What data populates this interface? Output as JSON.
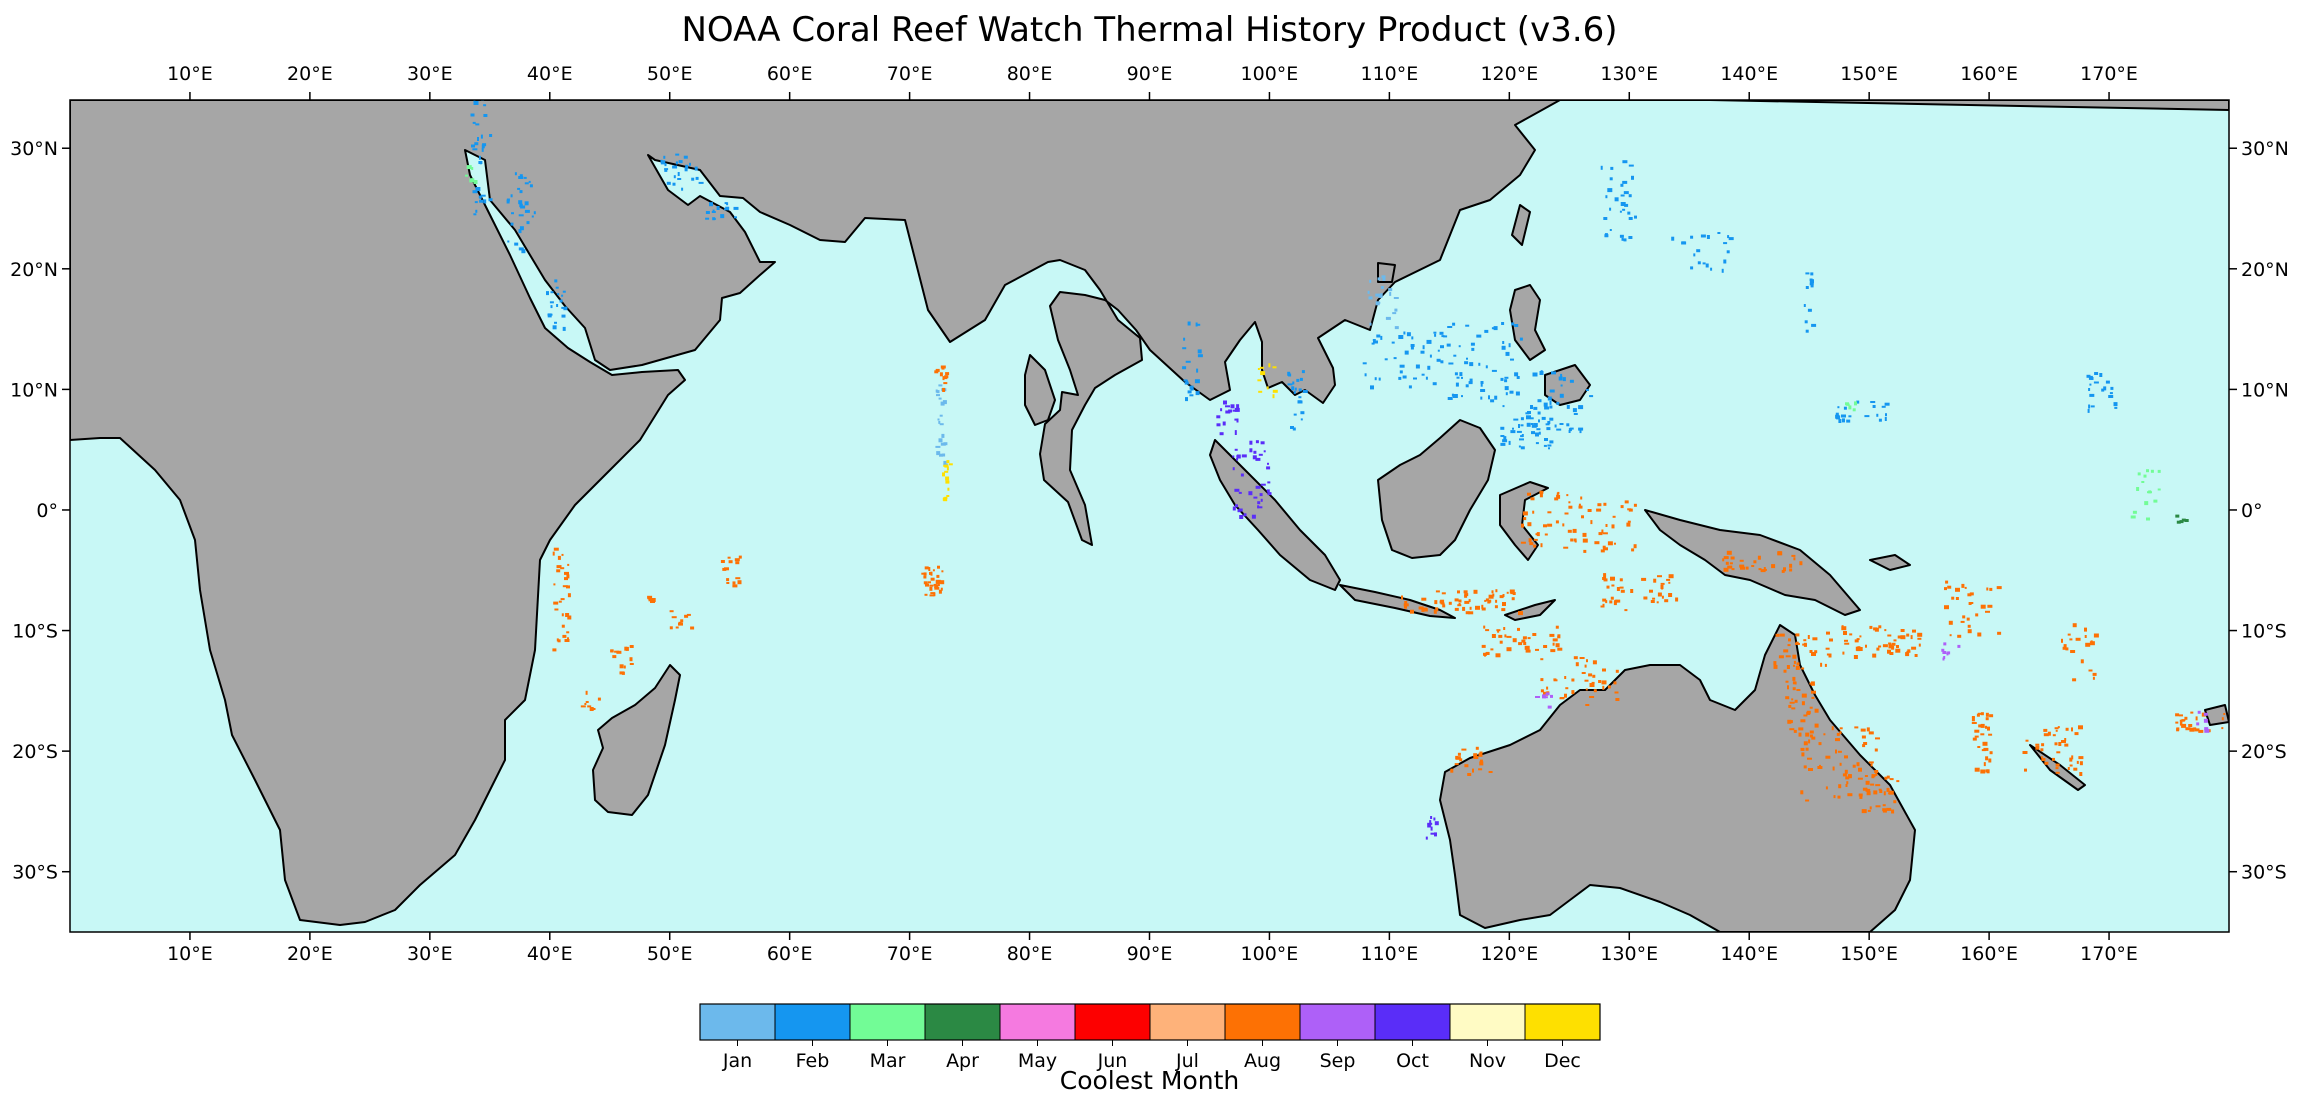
{
  "title": "NOAA Coral Reef Watch Thermal History Product (v3.6)",
  "map": {
    "projection": "plate-carree",
    "lon_range": [
      0,
      180
    ],
    "lat_range": [
      -35,
      34
    ],
    "ocean_color": "#c8f8f6",
    "land_color": "#a6a6a6",
    "coast_color": "#000000",
    "lon_ticks": [
      10,
      20,
      30,
      40,
      50,
      60,
      70,
      80,
      90,
      100,
      110,
      120,
      130,
      140,
      150,
      160,
      170
    ],
    "lon_tick_labels": [
      "10°E",
      "20°E",
      "30°E",
      "40°E",
      "50°E",
      "60°E",
      "70°E",
      "80°E",
      "90°E",
      "100°E",
      "110°E",
      "120°E",
      "130°E",
      "140°E",
      "150°E",
      "160°E",
      "170°E"
    ],
    "lat_ticks": [
      30,
      20,
      10,
      0,
      -10,
      -20,
      -30
    ],
    "lat_tick_labels": [
      "30°N",
      "20°N",
      "10°N",
      "0°",
      "10°S",
      "20°S",
      "30°S"
    ]
  },
  "colorbar": {
    "label": "Coolest Month",
    "months": [
      {
        "label": "Jan",
        "color": "#6cb9ec"
      },
      {
        "label": "Feb",
        "color": "#1596f0"
      },
      {
        "label": "Mar",
        "color": "#72fc96"
      },
      {
        "label": "Apr",
        "color": "#2b8944"
      },
      {
        "label": "May",
        "color": "#f57ae0"
      },
      {
        "label": "Jun",
        "color": "#fd0000"
      },
      {
        "label": "Jul",
        "color": "#feb27a"
      },
      {
        "label": "Aug",
        "color": "#fd7104"
      },
      {
        "label": "Sep",
        "color": "#ae60f8"
      },
      {
        "label": "Oct",
        "color": "#5a2df8"
      },
      {
        "label": "Nov",
        "color": "#fffbc4"
      },
      {
        "label": "Dec",
        "color": "#fee000"
      }
    ]
  }
}
